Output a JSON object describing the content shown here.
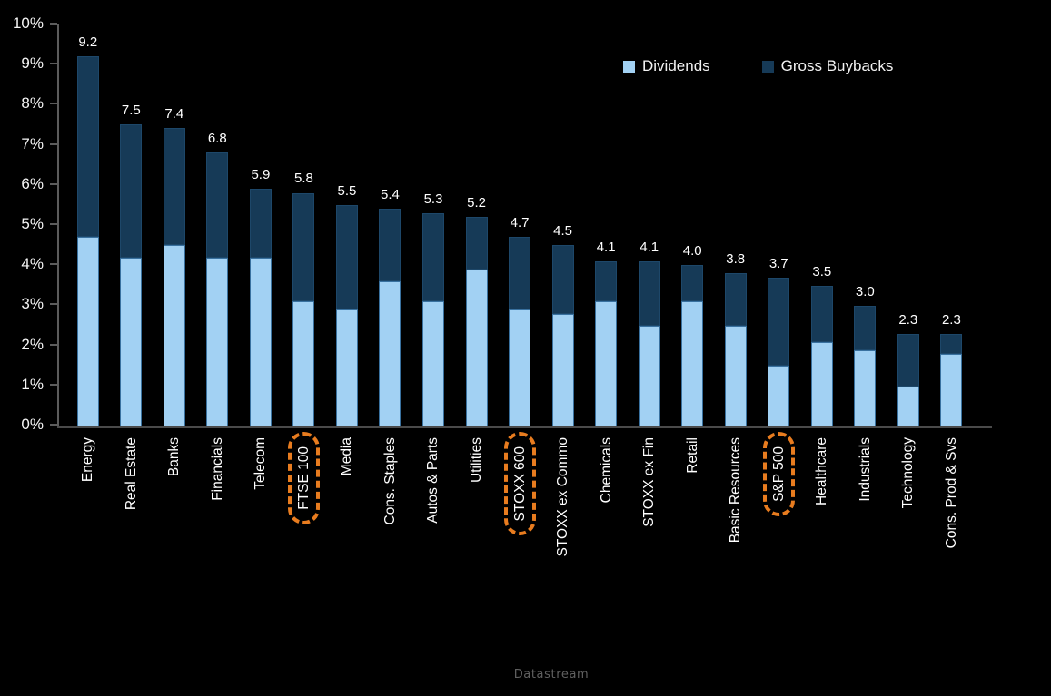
{
  "chart_data": {
    "type": "bar",
    "stacked": true,
    "title": "",
    "categories": [
      "Energy",
      "Real Estate",
      "Banks",
      "Financials",
      "Telecom",
      "FTSE 100",
      "Media",
      "Cons. Staples",
      "Autos & Parts",
      "Utilities",
      "STOXX 600",
      "STOXX ex Commo",
      "Chemicals",
      "STOXX ex Fin",
      "Retail",
      "Basic Resources",
      "S&P 500",
      "Healthcare",
      "Industrials",
      "Technology",
      "Cons. Prod & Svs"
    ],
    "series": [
      {
        "name": "Dividends",
        "color": "#A2D1F3",
        "values": [
          4.7,
          4.2,
          4.5,
          4.2,
          4.2,
          3.1,
          2.9,
          3.6,
          3.1,
          3.9,
          2.9,
          2.8,
          3.1,
          2.5,
          3.1,
          2.5,
          1.5,
          2.1,
          1.9,
          1.0,
          1.8
        ]
      },
      {
        "name": "Gross Buybacks",
        "color": "#163A57",
        "values": [
          4.5,
          3.3,
          2.9,
          2.6,
          1.7,
          2.7,
          2.6,
          1.8,
          2.2,
          1.3,
          1.8,
          1.7,
          1.0,
          1.6,
          0.9,
          1.3,
          2.2,
          1.4,
          1.1,
          1.3,
          0.5
        ]
      }
    ],
    "totals": [
      "9.2",
      "7.5",
      "7.4",
      "6.8",
      "5.9",
      "5.8",
      "5.5",
      "5.4",
      "5.3",
      "5.2",
      "4.7",
      "4.5",
      "4.1",
      "4.1",
      "4.0",
      "3.8",
      "3.7",
      "3.5",
      "3.0",
      "2.3",
      "2.3"
    ],
    "highlighted_categories": [
      "FTSE 100",
      "STOXX 600",
      "S&P 500"
    ],
    "highlight_color": "#E87C1F",
    "ylim": [
      0,
      10
    ],
    "ytick_labels": [
      "0%",
      "1%",
      "2%",
      "3%",
      "4%",
      "5%",
      "6%",
      "7%",
      "8%",
      "9%",
      "10%"
    ],
    "grid": false,
    "legend_position": "top-right",
    "source": "Datastream"
  }
}
